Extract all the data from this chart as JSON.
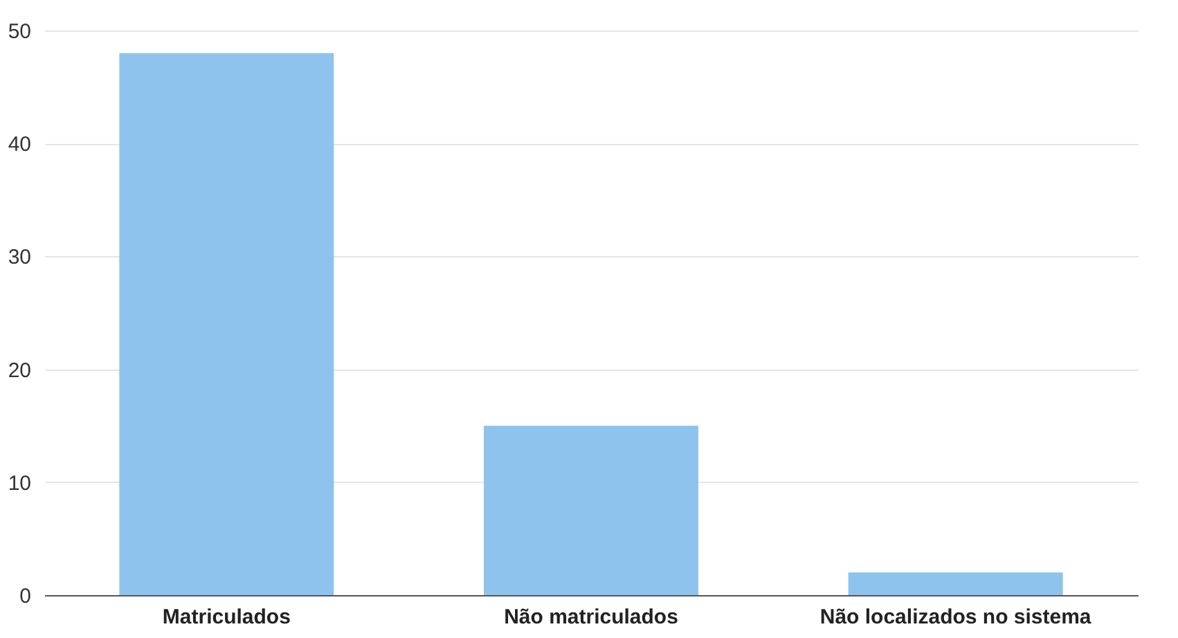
{
  "chart_data": {
    "type": "bar",
    "categories": [
      "Matriculados",
      "Não matriculados",
      "Não localizados no sistema"
    ],
    "values": [
      48,
      15,
      2
    ],
    "color": "#8ec3ee",
    "ylim": [
      0,
      50
    ],
    "yticks": [
      0,
      10,
      20,
      30,
      40,
      50
    ],
    "grid": "y"
  }
}
